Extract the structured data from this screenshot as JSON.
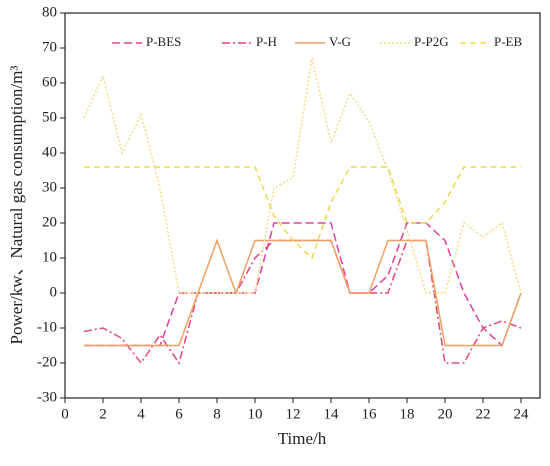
{
  "chart_data": {
    "type": "line",
    "x_label": "Time/h",
    "y_label": "Power/kw、Natural gas consumption/m³",
    "x": [
      1,
      2,
      3,
      4,
      5,
      6,
      7,
      8,
      9,
      10,
      11,
      12,
      13,
      14,
      15,
      16,
      17,
      18,
      19,
      20,
      21,
      22,
      23,
      24
    ],
    "xlim": [
      0,
      25
    ],
    "xticks": [
      0,
      2,
      4,
      6,
      8,
      10,
      12,
      14,
      16,
      18,
      20,
      22,
      24
    ],
    "ylim": [
      -30,
      80
    ],
    "yticks": [
      -30,
      -20,
      -10,
      0,
      10,
      20,
      30,
      40,
      50,
      60,
      70,
      80
    ],
    "legend": "top",
    "series": [
      {
        "name": "P-BES",
        "color": "#e0409b",
        "dash": "8,4",
        "values": [
          -15,
          -15,
          -15,
          -15,
          -15,
          0,
          0,
          0,
          0,
          0,
          20,
          20,
          20,
          20,
          0,
          0,
          5,
          20,
          20,
          15,
          0,
          -10,
          -15,
          0
        ]
      },
      {
        "name": "P-H",
        "color": "#e8457a",
        "dash": "8,3,2,3",
        "values": [
          -11,
          -10,
          -13,
          -20,
          -12,
          -20,
          0,
          0,
          0,
          10,
          15,
          15,
          15,
          15,
          0,
          0,
          0,
          15,
          15,
          -20,
          -20,
          -10,
          -8,
          -10
        ]
      },
      {
        "name": "V-G",
        "color": "#f0a060",
        "dash": "none",
        "values": [
          -15,
          -15,
          -15,
          -15,
          -15,
          -15,
          0,
          15,
          0,
          15,
          15,
          15,
          15,
          15,
          0,
          0,
          15,
          15,
          15,
          -15,
          -15,
          -15,
          -15,
          0
        ]
      },
      {
        "name": "P-P2G",
        "color": "#f2dc86",
        "dash": "2,2",
        "values": [
          50,
          62,
          40,
          51,
          30,
          0,
          0,
          0,
          0,
          0,
          30,
          33,
          67,
          43,
          57,
          49,
          35,
          18,
          0,
          0,
          20,
          16,
          20,
          0
        ]
      },
      {
        "name": "P-EB",
        "color": "#eed84c",
        "dash": "6,4",
        "values": [
          36,
          36,
          36,
          36,
          36,
          36,
          36,
          36,
          36,
          36,
          22,
          15,
          10,
          26,
          36,
          36,
          36,
          20,
          20,
          26,
          36,
          36,
          36,
          36
        ]
      }
    ]
  }
}
